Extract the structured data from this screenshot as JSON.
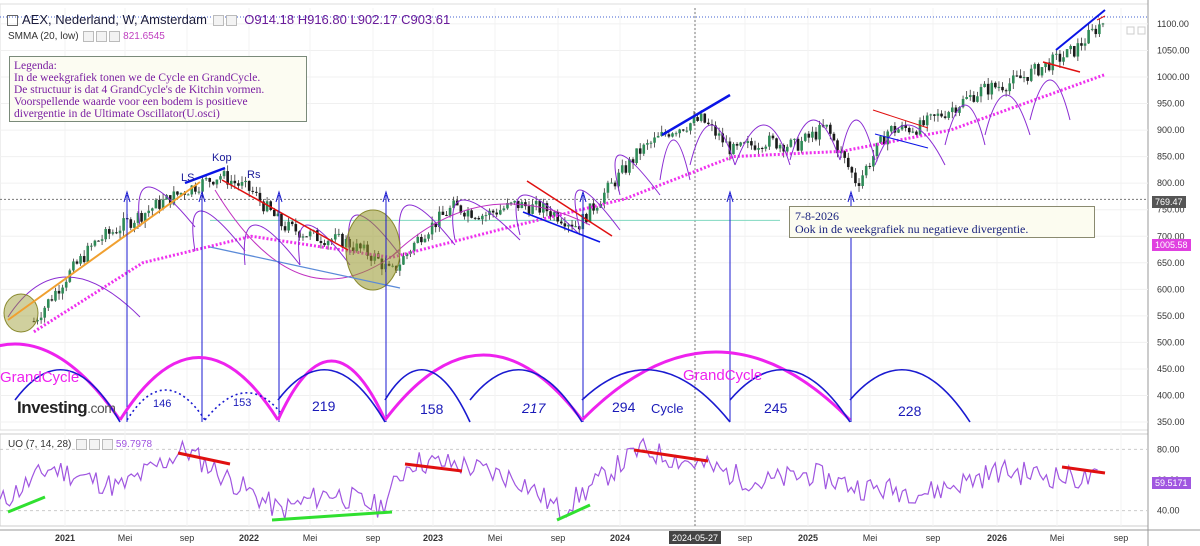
{
  "header": {
    "title": "AEX, Nederland, W, Amsterdam",
    "ohlc": "O914.18 H916.80 L902.17 C903.61"
  },
  "indicators": {
    "smma_label": "SMMA (20, low)",
    "smma_value": "821.6545",
    "uo_label": "UO (7, 14, 28)",
    "uo_value": "59.7978"
  },
  "legend_text": [
    "Legenda:",
    "In de weekgrafiek tonen  we de Cycle en GrandCycle.",
    "De structuur is dat 4 GrandCycle's de Kitchin vormen.",
    "Voorspellende waarde voor een bodem is positieve",
    "divergentie in de Ultimate Oscillator(U.osci)"
  ],
  "note_text": [
    "7-8-2026",
    "Ook in de weekgrafiek nu negatieve divergentie."
  ],
  "logo": {
    "brand": "Investing",
    "suffix": ".com"
  },
  "colors": {
    "candle_up": "#2e8b57",
    "candle_down": "#1a1a1a",
    "smma": "#ee30ee",
    "uo": "#a056e0",
    "cycle": "#1a1ad0",
    "grandcycle": "#ee22ee",
    "red": "#e01010",
    "green": "#30e030",
    "blue_line": "#0a14e6",
    "orange": "#f0a030"
  },
  "chart_data": [
    {
      "type": "candlestick",
      "yaxis": {
        "ticks": [
          350,
          400,
          450,
          500,
          550,
          600,
          650,
          700,
          750,
          800,
          850,
          900,
          950,
          1000,
          1050,
          1100
        ],
        "range": [
          335,
          1130
        ]
      },
      "xaxis": {
        "ticks": [
          "2021",
          "Mei",
          "sep",
          "2022",
          "Mei",
          "sep",
          "2023",
          "Mei",
          "sep",
          "2024",
          "2024-05-27",
          "sep",
          "2025",
          "Mei",
          "sep",
          "2026",
          "Mei",
          "sep"
        ]
      },
      "price_labels": {
        "last": "1005.58",
        "crosshair": "769.47",
        "high_line": "1113"
      },
      "close_path": [
        [
          "2020-11",
          540
        ],
        [
          "2021-01",
          620
        ],
        [
          "2021-03",
          690
        ],
        [
          "2021-05",
          725
        ],
        [
          "2021-07",
          760
        ],
        [
          "2021-09",
          790
        ],
        [
          "2021-11",
          815
        ],
        [
          "2022-01",
          785
        ],
        [
          "2022-03",
          720
        ],
        [
          "2022-05",
          700
        ],
        [
          "2022-07",
          690
        ],
        [
          "2022-09",
          660
        ],
        [
          "2022-10",
          630
        ],
        [
          "2022-12",
          705
        ],
        [
          "2023-02",
          755
        ],
        [
          "2023-04",
          740
        ],
        [
          "2023-06",
          760
        ],
        [
          "2023-08",
          750
        ],
        [
          "2023-10",
          720
        ],
        [
          "2023-12",
          790
        ],
        [
          "2024-02",
          860
        ],
        [
          "2024-04",
          900
        ],
        [
          "2024-06",
          920
        ],
        [
          "2024-08",
          860
        ],
        [
          "2024-10",
          880
        ],
        [
          "2024-12",
          870
        ],
        [
          "2025-02",
          905
        ],
        [
          "2025-04",
          800
        ],
        [
          "2025-06",
          900
        ],
        [
          "2025-08",
          905
        ],
        [
          "2025-10",
          940
        ],
        [
          "2025-12",
          975
        ],
        [
          "2026-02",
          990
        ],
        [
          "2026-04",
          1020
        ],
        [
          "2026-06",
          1050
        ],
        [
          "2026-08",
          1110
        ]
      ],
      "smma_path": [
        [
          "2020-11",
          520
        ],
        [
          "2021-06",
          650
        ],
        [
          "2022-01",
          700
        ],
        [
          "2022-10",
          660
        ],
        [
          "2023-06",
          720
        ],
        [
          "2024-01",
          770
        ],
        [
          "2024-08",
          850
        ],
        [
          "2025-03",
          860
        ],
        [
          "2025-10",
          900
        ],
        [
          "2026-08",
          1005
        ]
      ],
      "cycle_counts": [
        "146",
        "153",
        "219",
        "158",
        "217",
        "294",
        "245",
        "228"
      ],
      "cycle_labels": [
        "Cycle",
        "GrandCycle",
        "GrandCycle"
      ],
      "pattern_labels": [
        "LS",
        "Kop",
        "Rs"
      ]
    },
    {
      "type": "line",
      "title": "UO (7, 14, 28)",
      "yaxis": {
        "ticks": [
          40,
          60,
          80
        ],
        "range": [
          30,
          90
        ]
      },
      "last_value": "59.5171"
    }
  ]
}
